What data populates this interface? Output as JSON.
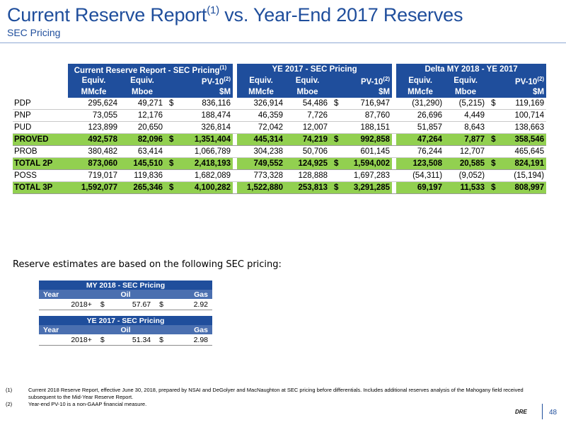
{
  "header": {
    "title_pre": "Current  Reserve Report",
    "title_sup": "(1)",
    "title_post": " vs. Year-End 2017 Reserves",
    "subtitle": "SEC Pricing"
  },
  "main_table": {
    "groups": {
      "current": "Current Reserve Report - SEC Pricing",
      "current_sup": "(1)",
      "ye2017": "YE 2017 - SEC Pricing",
      "delta": "Delta MY 2018 - YE 2017"
    },
    "col_headers": {
      "equiv": "Equiv.",
      "pv10": "PV-10",
      "pv10_sup": "(2)",
      "mmcfe": "MMcfe",
      "mboe": "Mboe",
      "usd_m": "$M"
    },
    "rows": [
      {
        "label": "PDP",
        "type": "data",
        "c_mmcfe": "295,624",
        "c_mboe": "49,271",
        "c_cur": "$",
        "c_pv": "836,116",
        "y_mmcfe": "326,914",
        "y_mboe": "54,486",
        "y_cur": "$",
        "y_pv": "716,947",
        "d_mmcfe": "(31,290)",
        "d_mboe": "(5,215)",
        "d_cur": "$",
        "d_pv": "119,169"
      },
      {
        "label": "PNP",
        "type": "data",
        "c_mmcfe": "73,055",
        "c_mboe": "12,176",
        "c_cur": "",
        "c_pv": "188,474",
        "y_mmcfe": "46,359",
        "y_mboe": "7,726",
        "y_cur": "",
        "y_pv": "87,760",
        "d_mmcfe": "26,696",
        "d_mboe": "4,449",
        "d_cur": "",
        "d_pv": "100,714"
      },
      {
        "label": "PUD",
        "type": "data",
        "c_mmcfe": "123,899",
        "c_mboe": "20,650",
        "c_cur": "",
        "c_pv": "326,814",
        "y_mmcfe": "72,042",
        "y_mboe": "12,007",
        "y_cur": "",
        "y_pv": "188,151",
        "d_mmcfe": "51,857",
        "d_mboe": "8,643",
        "d_cur": "",
        "d_pv": "138,663"
      },
      {
        "label": "PROVED",
        "type": "sub",
        "c_mmcfe": "492,578",
        "c_mboe": "82,096",
        "c_cur": "$",
        "c_pv": "1,351,404",
        "y_mmcfe": "445,314",
        "y_mboe": "74,219",
        "y_cur": "$",
        "y_pv": "992,858",
        "d_mmcfe": "47,264",
        "d_mboe": "7,877",
        "d_cur": "$",
        "d_pv": "358,546"
      },
      {
        "label": "PROB",
        "type": "data",
        "c_mmcfe": "380,482",
        "c_mboe": "63,414",
        "c_cur": "",
        "c_pv": "1,066,789",
        "y_mmcfe": "304,238",
        "y_mboe": "50,706",
        "y_cur": "",
        "y_pv": "601,145",
        "d_mmcfe": "76,244",
        "d_mboe": "12,707",
        "d_cur": "",
        "d_pv": "465,645"
      },
      {
        "label": "TOTAL 2P",
        "type": "sub",
        "c_mmcfe": "873,060",
        "c_mboe": "145,510",
        "c_cur": "$",
        "c_pv": "2,418,193",
        "y_mmcfe": "749,552",
        "y_mboe": "124,925",
        "y_cur": "$",
        "y_pv": "1,594,002",
        "d_mmcfe": "123,508",
        "d_mboe": "20,585",
        "d_cur": "$",
        "d_pv": "824,191"
      },
      {
        "label": "POSS",
        "type": "data",
        "c_mmcfe": "719,017",
        "c_mboe": "119,836",
        "c_cur": "",
        "c_pv": "1,682,089",
        "y_mmcfe": "773,328",
        "y_mboe": "128,888",
        "y_cur": "",
        "y_pv": "1,697,283",
        "d_mmcfe": "(54,311)",
        "d_mboe": "(9,052)",
        "d_cur": "",
        "d_pv": "(15,194)"
      },
      {
        "label": "TOTAL 3P",
        "type": "sub",
        "c_mmcfe": "1,592,077",
        "c_mboe": "265,346",
        "c_cur": "$",
        "c_pv": "4,100,282",
        "y_mmcfe": "1,522,880",
        "y_mboe": "253,813",
        "y_cur": "$",
        "y_pv": "3,291,285",
        "d_mmcfe": "69,197",
        "d_mboe": "11,533",
        "d_cur": "$",
        "d_pv": "808,997"
      }
    ]
  },
  "pricing": {
    "note": "Reserve estimates are based on the following SEC pricing:",
    "tables": [
      {
        "title": "MY 2018 - SEC Pricing",
        "col_year": "Year",
        "col_oil": "Oil",
        "col_gas": "Gas",
        "year": "2018+",
        "oil_cur": "$",
        "oil": "57.67",
        "gas_cur": "$",
        "gas": "2.92"
      },
      {
        "title": "YE 2017 - SEC Pricing",
        "col_year": "Year",
        "col_oil": "Oil",
        "col_gas": "Gas",
        "year": "2018+",
        "oil_cur": "$",
        "oil": "51.34",
        "gas_cur": "$",
        "gas": "2.98"
      }
    ]
  },
  "footnotes": [
    {
      "num": "(1)",
      "text": "Current 2018 Reserve Report, effective June 30, 2018, prepared by NSAI and DeGolyer and MacNaughton at SEC pricing before differentials.  Includes additional reserves analysis of the Mahogany field received subsequent to the Mid-Year Reserve Report."
    },
    {
      "num": "(2)",
      "text": "Year-end PV-10 is a non-GAAP financial measure."
    }
  ],
  "footer": {
    "logo": "DRE",
    "page_number": "48"
  }
}
